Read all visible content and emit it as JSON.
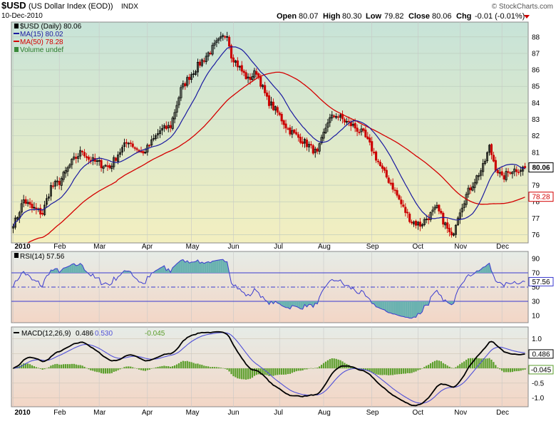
{
  "header": {
    "symbol": "$USD",
    "name": "(US Dollar Index (EOD))",
    "exchange": "INDX",
    "date": "10-Dec-2010",
    "credit": "© StockCharts.com",
    "quote": {
      "open_label": "Open",
      "open": "80.07",
      "high_label": "High",
      "high": "80.30",
      "low_label": "Low",
      "low": "79.82",
      "close_label": "Close",
      "close": "80.06",
      "chg_label": "Chg",
      "chg": "-0.01 (-0.01%)"
    }
  },
  "colors": {
    "price_bg_top": "#c7e3d8",
    "price_bg_bottom": "#f3efc0",
    "lower_bg_top": "#e6ece7",
    "lower_bg_bottom": "#f3d6c6",
    "candle": "#000000",
    "candle_down": "#cc0000",
    "ma15": "#1a1aa0",
    "ma50": "#d40000",
    "rsi": "#3a3ad0",
    "rsi_fill": "#6ab2b0",
    "macd": "#000000",
    "signal": "#5050d8",
    "histogram": "#5a9e2a"
  },
  "chart_data": [
    {
      "type": "candlestick",
      "panel": "price",
      "legend": [
        {
          "id": "price",
          "text": "$USD (Daily) 80.06"
        },
        {
          "id": "ma15",
          "text": "MA(15) 80.02"
        },
        {
          "id": "ma50",
          "text": "MA(50) 78.28"
        },
        {
          "id": "volume",
          "text": "Volume undef"
        }
      ],
      "y_ticks": [
        76,
        77,
        78,
        79,
        80,
        81,
        82,
        83,
        84,
        85,
        86,
        87,
        88
      ],
      "ylim": [
        75.5,
        88.9
      ],
      "last_close_label": "80.06",
      "last_ma50_label": "78.28",
      "x_ticks": [
        "2010",
        "Feb",
        "Mar",
        "Apr",
        "May",
        "Jun",
        "Jul",
        "Aug",
        "Sep",
        "Oct",
        "Nov",
        "Dec"
      ],
      "x_tick_index": [
        0,
        22,
        41,
        64,
        85,
        105,
        127,
        148,
        171,
        193,
        213,
        233
      ],
      "n_days": 245,
      "close_keyframes": [
        [
          0,
          76.5
        ],
        [
          5,
          78.1
        ],
        [
          9,
          77.6
        ],
        [
          14,
          77.3
        ],
        [
          18,
          78.9
        ],
        [
          22,
          79.2
        ],
        [
          28,
          80.4
        ],
        [
          33,
          81.1
        ],
        [
          36,
          80.6
        ],
        [
          41,
          80.3
        ],
        [
          46,
          80.1
        ],
        [
          50,
          80.9
        ],
        [
          55,
          81.7
        ],
        [
          58,
          81.3
        ],
        [
          62,
          80.9
        ],
        [
          66,
          81.6
        ],
        [
          70,
          82.3
        ],
        [
          75,
          82.6
        ],
        [
          80,
          84.8
        ],
        [
          84,
          85.6
        ],
        [
          89,
          86.4
        ],
        [
          93,
          87.0
        ],
        [
          97,
          87.6
        ],
        [
          102,
          88.2
        ],
        [
          104,
          86.9
        ],
        [
          108,
          86.1
        ],
        [
          112,
          85.4
        ],
        [
          116,
          85.9
        ],
        [
          121,
          84.2
        ],
        [
          126,
          83.4
        ],
        [
          131,
          82.4
        ],
        [
          136,
          81.9
        ],
        [
          141,
          81.4
        ],
        [
          145,
          80.9
        ],
        [
          148,
          82.1
        ],
        [
          150,
          82.9
        ],
        [
          154,
          83.3
        ],
        [
          158,
          82.9
        ],
        [
          162,
          82.6
        ],
        [
          167,
          82.1
        ],
        [
          171,
          81.2
        ],
        [
          176,
          79.9
        ],
        [
          181,
          78.9
        ],
        [
          186,
          77.6
        ],
        [
          190,
          76.8
        ],
        [
          194,
          76.6
        ],
        [
          198,
          77.1
        ],
        [
          202,
          77.6
        ],
        [
          206,
          76.6
        ],
        [
          209,
          75.8
        ],
        [
          212,
          77.2
        ],
        [
          216,
          78.4
        ],
        [
          220,
          79.3
        ],
        [
          224,
          80.1
        ],
        [
          227,
          81.3
        ],
        [
          230,
          80.1
        ],
        [
          233,
          79.4
        ],
        [
          237,
          79.9
        ],
        [
          244,
          80.06
        ]
      ],
      "ma15_end": 80.02,
      "ma50_end": 78.28
    },
    {
      "type": "line",
      "panel": "rsi",
      "legend": "RSI(14) 57.56",
      "y_ticks": [
        10,
        30,
        50,
        70,
        90
      ],
      "ylim": [
        0,
        100
      ],
      "bands": [
        30,
        50,
        70
      ],
      "last_value": 57.56,
      "last_value_label": "57.56"
    },
    {
      "type": "line",
      "panel": "macd",
      "legend_prefix": "MACD(12,26,9)",
      "legend_macd": "0.486",
      "legend_signal": "0.530",
      "legend_hist": "-0.045",
      "y_ticks": [
        "1.0",
        "0.5",
        "0.0",
        "-0.5",
        "-1.0"
      ],
      "y_tick_values": [
        1.0,
        0.5,
        0.0,
        -0.5,
        -1.0
      ],
      "ylim": [
        -1.3,
        1.4
      ],
      "last_macd": 0.486,
      "last_signal": 0.53,
      "last_hist": -0.045,
      "last_macd_label": "0.486",
      "last_hist_label": "-0.045"
    }
  ]
}
